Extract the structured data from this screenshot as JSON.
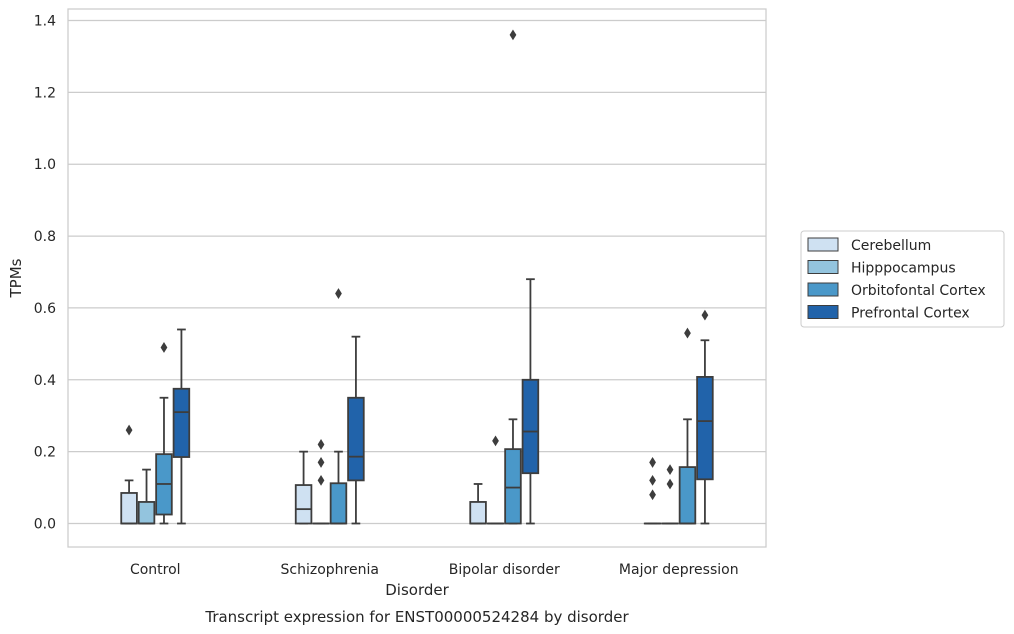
{
  "chart_data": {
    "type": "box",
    "caption": "Transcript expression for ENST00000524284 by disorder",
    "xlabel": "Disorder",
    "ylabel": "TPMs",
    "ylim": [
      -0.065,
      1.43
    ],
    "yticks": [
      "0.0",
      "0.2",
      "0.4",
      "0.6",
      "0.8",
      "1.0",
      "1.2",
      "1.4"
    ],
    "ytick_values": [
      0,
      0.2,
      0.4,
      0.6,
      0.8,
      1.0,
      1.2,
      1.4
    ],
    "grid": "horizontal",
    "legend_position": "right",
    "categories": [
      "Control",
      "Schizophrenia",
      "Bipolar disorder",
      "Major depression"
    ],
    "series": [
      {
        "name": "Cerebellum",
        "color": "#cfe1f2",
        "boxes": [
          {
            "whislo": 0,
            "q1": 0,
            "med": 0,
            "q3": 0.085,
            "whishi": 0.12,
            "fliers": [
              0.26
            ]
          },
          {
            "whislo": 0,
            "q1": 0,
            "med": 0.04,
            "q3": 0.107,
            "whishi": 0.2,
            "fliers": []
          },
          {
            "whislo": 0,
            "q1": 0,
            "med": 0,
            "q3": 0.06,
            "whishi": 0.11,
            "fliers": []
          },
          {
            "whislo": 0,
            "q1": 0,
            "med": 0,
            "q3": 0,
            "whishi": 0,
            "fliers": [
              0.08,
              0.12,
              0.17
            ]
          }
        ]
      },
      {
        "name": "Hipppocampus",
        "color": "#93c4de",
        "boxes": [
          {
            "whislo": 0,
            "q1": 0,
            "med": 0,
            "q3": 0.06,
            "whishi": 0.15,
            "fliers": []
          },
          {
            "whislo": 0,
            "q1": 0,
            "med": 0,
            "q3": 0,
            "whishi": 0,
            "fliers": [
              0.12,
              0.17,
              0.22
            ]
          },
          {
            "whislo": 0,
            "q1": 0,
            "med": 0,
            "q3": 0,
            "whishi": 0,
            "fliers": [
              0.23
            ]
          },
          {
            "whislo": 0,
            "q1": 0,
            "med": 0,
            "q3": 0,
            "whishi": 0,
            "fliers": [
              0.11,
              0.15
            ]
          }
        ]
      },
      {
        "name": "Orbitofontal Cortex",
        "color": "#4a98c9",
        "boxes": [
          {
            "whislo": 0,
            "q1": 0.025,
            "med": 0.11,
            "q3": 0.193,
            "whishi": 0.35,
            "fliers": [
              0.49
            ]
          },
          {
            "whislo": 0,
            "q1": 0,
            "med": 0,
            "q3": 0.112,
            "whishi": 0.2,
            "fliers": [
              0.64
            ]
          },
          {
            "whislo": 0,
            "q1": 0,
            "med": 0.1,
            "q3": 0.207,
            "whishi": 0.29,
            "fliers": [
              1.36
            ]
          },
          {
            "whislo": 0,
            "q1": 0,
            "med": 0,
            "q3": 0.157,
            "whishi": 0.29,
            "fliers": [
              0.53
            ]
          }
        ]
      },
      {
        "name": "Prefrontal Cortex",
        "color": "#2163aa",
        "boxes": [
          {
            "whislo": 0,
            "q1": 0.185,
            "med": 0.31,
            "q3": 0.375,
            "whishi": 0.54,
            "fliers": []
          },
          {
            "whislo": 0,
            "q1": 0.12,
            "med": 0.186,
            "q3": 0.35,
            "whishi": 0.52,
            "fliers": []
          },
          {
            "whislo": 0,
            "q1": 0.14,
            "med": 0.256,
            "q3": 0.4,
            "whishi": 0.68,
            "fliers": []
          },
          {
            "whislo": 0,
            "q1": 0.123,
            "med": 0.285,
            "q3": 0.408,
            "whishi": 0.51,
            "fliers": [
              0.58
            ]
          }
        ]
      }
    ]
  }
}
